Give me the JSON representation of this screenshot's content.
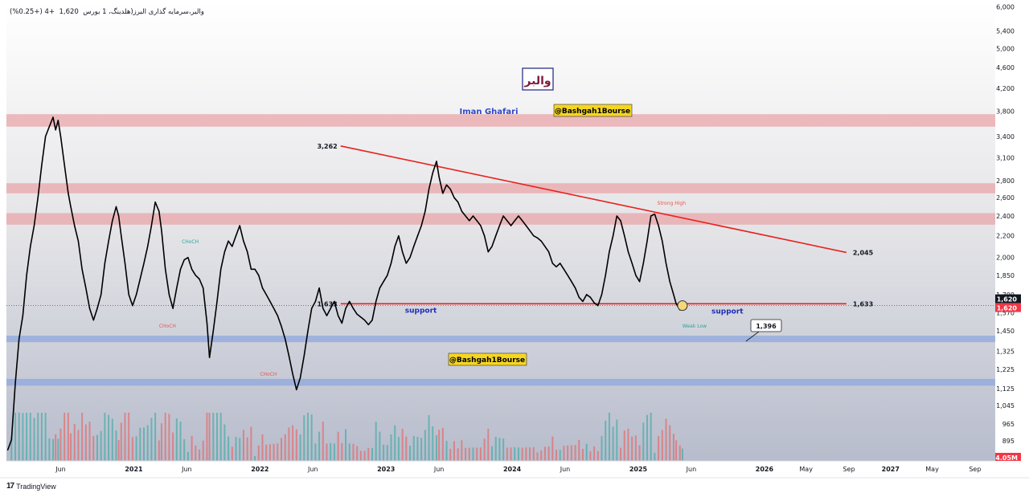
{
  "header": {
    "symbol_text": "والبر،سرمایه گذاری البرز(هلدینگ، 1 بورس",
    "price": "1,620",
    "change": "+4",
    "change_pct": "(+0.25%)"
  },
  "footer": {
    "logo_text": "TradingView",
    "logo_mark": "17"
  },
  "chart_data": {
    "type": "line",
    "y_axis_ticks": [
      "6,000",
      "5,400",
      "5,000",
      "4,600",
      "4,200",
      "3,800",
      "3,400",
      "3,100",
      "2,800",
      "2,600",
      "2,400",
      "2,200",
      "2,000",
      "1,850",
      "1,700",
      "1,570",
      "1,450",
      "1,325",
      "1,225",
      "1,125",
      "1,045",
      "965",
      "895"
    ],
    "y_scale": "log",
    "ylim": [
      820,
      6100
    ],
    "x_axis_ticks": [
      "Jun",
      "2021",
      "Jun",
      "2022",
      "Jun",
      "2023",
      "Jun",
      "2024",
      "Jun",
      "2025",
      "Jun",
      "2026",
      "May",
      "Sep",
      "2027",
      "May",
      "Sep"
    ],
    "x_tick_dates": [
      2020.42,
      2021.0,
      2021.42,
      2022.0,
      2022.42,
      2023.0,
      2023.42,
      2024.0,
      2024.42,
      2025.0,
      2025.42,
      2026.0,
      2026.33,
      2026.67,
      2027.0,
      2027.33,
      2027.67
    ],
    "xlim": [
      2019.99,
      2027.83
    ],
    "current_price_label": "1,620",
    "current_price_color": "#f23645",
    "volume_label": "4.05M",
    "volume_label_color": "#f23645",
    "series": [
      {
        "name": "",
        "color": "#000000",
        "points": [
          [
            2020.0,
            860
          ],
          [
            2020.03,
            900
          ],
          [
            2020.06,
            1150
          ],
          [
            2020.09,
            1400
          ],
          [
            2020.12,
            1550
          ],
          [
            2020.15,
            1850
          ],
          [
            2020.18,
            2100
          ],
          [
            2020.21,
            2300
          ],
          [
            2020.24,
            2600
          ],
          [
            2020.27,
            3000
          ],
          [
            2020.3,
            3400
          ],
          [
            2020.33,
            3550
          ],
          [
            2020.36,
            3700
          ],
          [
            2020.38,
            3500
          ],
          [
            2020.4,
            3650
          ],
          [
            2020.42,
            3400
          ],
          [
            2020.45,
            3000
          ],
          [
            2020.48,
            2650
          ],
          [
            2020.5,
            2500
          ],
          [
            2020.53,
            2300
          ],
          [
            2020.56,
            2150
          ],
          [
            2020.59,
            1900
          ],
          [
            2020.62,
            1750
          ],
          [
            2020.65,
            1600
          ],
          [
            2020.68,
            1520
          ],
          [
            2020.71,
            1600
          ],
          [
            2020.74,
            1700
          ],
          [
            2020.77,
            1950
          ],
          [
            2020.8,
            2150
          ],
          [
            2020.83,
            2350
          ],
          [
            2020.86,
            2500
          ],
          [
            2020.88,
            2400
          ],
          [
            2020.9,
            2200
          ],
          [
            2020.93,
            1950
          ],
          [
            2020.96,
            1700
          ],
          [
            2020.99,
            1620
          ],
          [
            2021.02,
            1700
          ],
          [
            2021.05,
            1820
          ],
          [
            2021.08,
            1950
          ],
          [
            2021.11,
            2100
          ],
          [
            2021.14,
            2300
          ],
          [
            2021.17,
            2550
          ],
          [
            2021.2,
            2450
          ],
          [
            2021.22,
            2250
          ],
          [
            2021.25,
            1900
          ],
          [
            2021.28,
            1700
          ],
          [
            2021.31,
            1600
          ],
          [
            2021.34,
            1750
          ],
          [
            2021.37,
            1900
          ],
          [
            2021.4,
            1980
          ],
          [
            2021.43,
            2000
          ],
          [
            2021.46,
            1900
          ],
          [
            2021.49,
            1850
          ],
          [
            2021.52,
            1820
          ],
          [
            2021.55,
            1750
          ],
          [
            2021.58,
            1500
          ],
          [
            2021.6,
            1290
          ],
          [
            2021.63,
            1450
          ],
          [
            2021.66,
            1650
          ],
          [
            2021.69,
            1900
          ],
          [
            2021.72,
            2050
          ],
          [
            2021.75,
            2150
          ],
          [
            2021.78,
            2100
          ],
          [
            2021.81,
            2200
          ],
          [
            2021.84,
            2300
          ],
          [
            2021.87,
            2150
          ],
          [
            2021.9,
            2050
          ],
          [
            2021.93,
            1900
          ],
          [
            2021.96,
            1900
          ],
          [
            2021.99,
            1850
          ],
          [
            2022.02,
            1750
          ],
          [
            2022.05,
            1700
          ],
          [
            2022.08,
            1650
          ],
          [
            2022.11,
            1600
          ],
          [
            2022.14,
            1550
          ],
          [
            2022.17,
            1480
          ],
          [
            2022.2,
            1400
          ],
          [
            2022.23,
            1300
          ],
          [
            2022.26,
            1200
          ],
          [
            2022.29,
            1120
          ],
          [
            2022.32,
            1180
          ],
          [
            2022.35,
            1300
          ],
          [
            2022.38,
            1450
          ],
          [
            2022.41,
            1600
          ],
          [
            2022.44,
            1650
          ],
          [
            2022.47,
            1750
          ],
          [
            2022.5,
            1600
          ],
          [
            2022.53,
            1550
          ],
          [
            2022.56,
            1600
          ],
          [
            2022.59,
            1650
          ],
          [
            2022.62,
            1550
          ],
          [
            2022.65,
            1500
          ],
          [
            2022.68,
            1600
          ],
          [
            2022.71,
            1650
          ],
          [
            2022.74,
            1600
          ],
          [
            2022.77,
            1560
          ],
          [
            2022.8,
            1540
          ],
          [
            2022.83,
            1520
          ],
          [
            2022.86,
            1490
          ],
          [
            2022.89,
            1520
          ],
          [
            2022.92,
            1650
          ],
          [
            2022.95,
            1750
          ],
          [
            2022.98,
            1800
          ],
          [
            2023.01,
            1850
          ],
          [
            2023.04,
            1950
          ],
          [
            2023.07,
            2100
          ],
          [
            2023.1,
            2200
          ],
          [
            2023.13,
            2050
          ],
          [
            2023.16,
            1950
          ],
          [
            2023.19,
            2000
          ],
          [
            2023.22,
            2100
          ],
          [
            2023.25,
            2200
          ],
          [
            2023.28,
            2300
          ],
          [
            2023.31,
            2450
          ],
          [
            2023.34,
            2700
          ],
          [
            2023.37,
            2900
          ],
          [
            2023.4,
            3050
          ],
          [
            2023.42,
            2850
          ],
          [
            2023.45,
            2650
          ],
          [
            2023.48,
            2750
          ],
          [
            2023.51,
            2700
          ],
          [
            2023.54,
            2600
          ],
          [
            2023.57,
            2550
          ],
          [
            2023.6,
            2450
          ],
          [
            2023.63,
            2400
          ],
          [
            2023.66,
            2350
          ],
          [
            2023.69,
            2400
          ],
          [
            2023.72,
            2350
          ],
          [
            2023.75,
            2300
          ],
          [
            2023.78,
            2200
          ],
          [
            2023.81,
            2050
          ],
          [
            2023.84,
            2100
          ],
          [
            2023.87,
            2200
          ],
          [
            2023.9,
            2300
          ],
          [
            2023.93,
            2400
          ],
          [
            2023.96,
            2350
          ],
          [
            2023.99,
            2300
          ],
          [
            2024.02,
            2350
          ],
          [
            2024.05,
            2400
          ],
          [
            2024.08,
            2350
          ],
          [
            2024.11,
            2300
          ],
          [
            2024.14,
            2250
          ],
          [
            2024.17,
            2200
          ],
          [
            2024.2,
            2180
          ],
          [
            2024.23,
            2150
          ],
          [
            2024.26,
            2100
          ],
          [
            2024.29,
            2050
          ],
          [
            2024.32,
            1950
          ],
          [
            2024.35,
            1920
          ],
          [
            2024.38,
            1950
          ],
          [
            2024.41,
            1900
          ],
          [
            2024.44,
            1850
          ],
          [
            2024.47,
            1800
          ],
          [
            2024.5,
            1750
          ],
          [
            2024.53,
            1680
          ],
          [
            2024.56,
            1650
          ],
          [
            2024.59,
            1700
          ],
          [
            2024.62,
            1680
          ],
          [
            2024.65,
            1640
          ],
          [
            2024.68,
            1620
          ],
          [
            2024.71,
            1700
          ],
          [
            2024.74,
            1850
          ],
          [
            2024.77,
            2050
          ],
          [
            2024.8,
            2200
          ],
          [
            2024.83,
            2400
          ],
          [
            2024.86,
            2350
          ],
          [
            2024.89,
            2200
          ],
          [
            2024.92,
            2050
          ],
          [
            2024.95,
            1950
          ],
          [
            2024.98,
            1850
          ],
          [
            2025.01,
            1800
          ],
          [
            2025.04,
            1950
          ],
          [
            2025.07,
            2150
          ],
          [
            2025.1,
            2400
          ],
          [
            2025.13,
            2420
          ],
          [
            2025.16,
            2300
          ],
          [
            2025.19,
            2150
          ],
          [
            2025.22,
            1950
          ],
          [
            2025.25,
            1800
          ],
          [
            2025.28,
            1700
          ],
          [
            2025.3,
            1633
          ],
          [
            2025.33,
            1590
          ],
          [
            2025.35,
            1620
          ]
        ]
      }
    ],
    "volume_color_up": "#26a69a",
    "volume_color_down": "#ef5350",
    "zones": [
      {
        "y_from": 3550,
        "y_to": 3750,
        "color": "#e8a5aa"
      },
      {
        "y_from": 2650,
        "y_to": 2770,
        "color": "#e8a5aa"
      },
      {
        "y_from": 2310,
        "y_to": 2430,
        "color": "#e8a5aa"
      },
      {
        "y_from": 1380,
        "y_to": 1420,
        "color": "#8fa7de"
      },
      {
        "y_from": 1140,
        "y_to": 1175,
        "color": "#8fa7de"
      }
    ],
    "trendline": {
      "from": [
        2022.64,
        3262
      ],
      "to": [
        2026.65,
        2045
      ],
      "color": "#e8221d",
      "label_start": "3,262",
      "label_end": "2,045"
    },
    "support_line": {
      "from": [
        2022.64,
        1633
      ],
      "to": [
        2026.65,
        1633
      ],
      "color": "#e8221d",
      "label_start": "1,633",
      "label_end": "1,633",
      "labels": [
        "support",
        "support"
      ]
    },
    "target_label": "1,396",
    "annotations": [
      {
        "text": "Iman Ghafari",
        "color": "#2f48c7"
      },
      {
        "text": "@Bashgah1Bourse",
        "color": "#000000",
        "bg": "#f5d622"
      },
      {
        "text": "@Bashgah1Bourse",
        "color": "#000000",
        "bg": "#f5d622"
      },
      {
        "text": "والبر",
        "color": "#7a1b3d"
      }
    ],
    "structure_labels": [
      {
        "text": "CHoCH",
        "at": [
          2021.38,
          2130
        ],
        "color": "#26a69a"
      },
      {
        "text": "CHoCH",
        "at": [
          2021.2,
          1470
        ],
        "color": "#ef5350"
      },
      {
        "text": "CHoCH",
        "at": [
          2022.0,
          1190
        ],
        "color": "#ef5350"
      },
      {
        "text": "Strong High",
        "at": [
          2025.15,
          2520
        ],
        "color": "#ef5350"
      },
      {
        "text": "Weak Low",
        "at": [
          2025.35,
          1470
        ],
        "color": "#26a69a"
      }
    ]
  }
}
